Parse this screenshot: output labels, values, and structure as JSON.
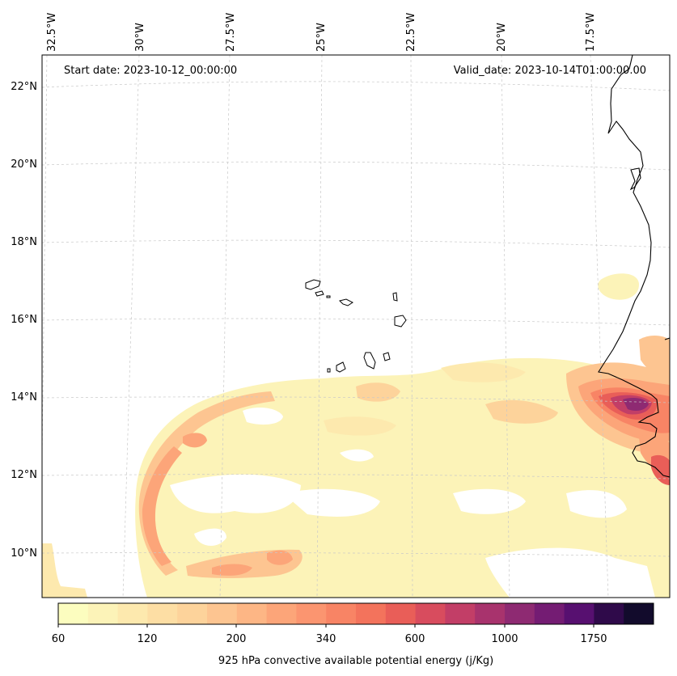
{
  "map": {
    "start_date_text": "Start date: 2023-10-12_00:00:00",
    "valid_date_text": "Valid_date: 2023-10-14T01:00:00.00",
    "longitude_labels": [
      "32.5°W",
      "30°W",
      "27.5°W",
      "25°W",
      "22.5°W",
      "20°W",
      "17.5°W"
    ],
    "latitude_labels": [
      "22°N",
      "20°N",
      "18°N",
      "16°N",
      "14°N",
      "12°N",
      "10°N"
    ],
    "colorbar": {
      "title": "925 hPa convective available potential energy (j/Kg)",
      "tick_labels": [
        "60",
        "120",
        "200",
        "340",
        "600",
        "1000",
        "1750"
      ],
      "colors": [
        "#fcfdbf",
        "#fcf3b8",
        "#fde9ae",
        "#fddea4",
        "#fdd39b",
        "#fdc591",
        "#fdb685",
        "#fca579",
        "#fb9570",
        "#f88465",
        "#f3735c",
        "#e95e58",
        "#d84c5e",
        "#c23e67",
        "#a8336d",
        "#8e2a72",
        "#741c73",
        "#571070",
        "#2f0a4a",
        "#120b2c"
      ]
    }
  }
}
